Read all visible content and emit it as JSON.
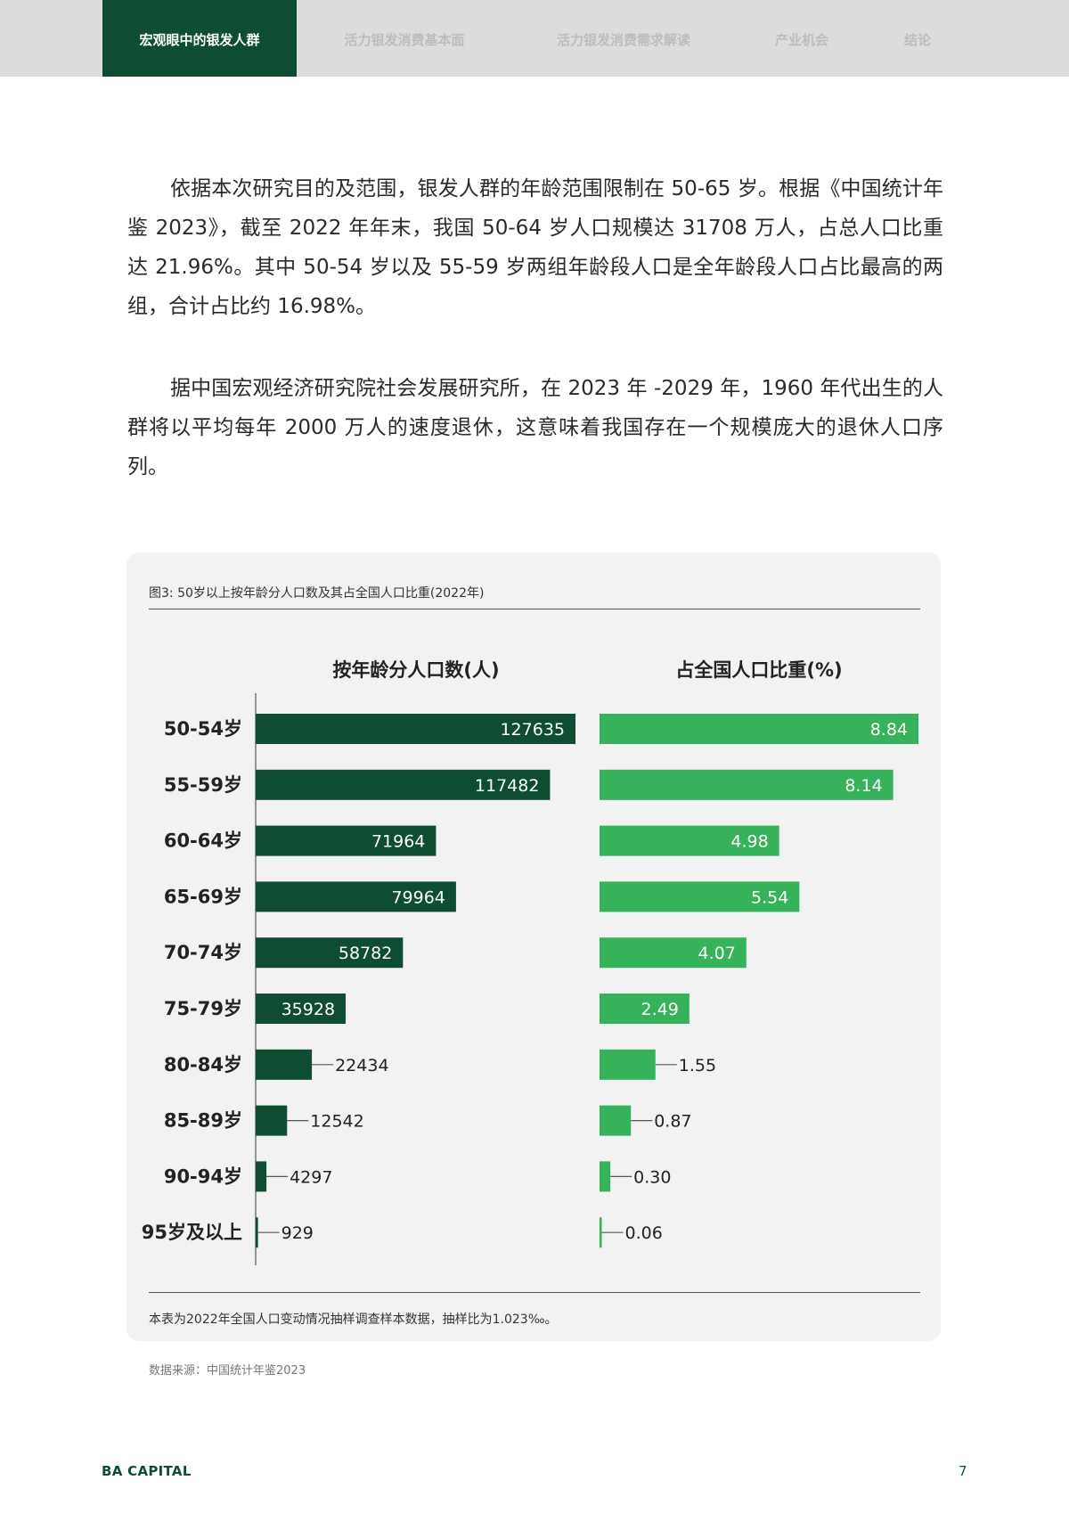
{
  "nav": {
    "tabs": [
      {
        "label": "宏观眼中的银发人群",
        "active": true
      },
      {
        "label": "活力银发消费基本面",
        "active": false
      },
      {
        "label": "活力银发消费需求解读",
        "active": false
      },
      {
        "label": "产业机会",
        "active": false
      },
      {
        "label": "结论",
        "active": false
      }
    ]
  },
  "body": {
    "paragraph1": "依据本次研究目的及范围，银发人群的年龄范围限制在 50-65 岁。根据《中国统计年鉴 2023》，截至 2022 年年末，我国 50-64 岁人口规模达 31708 万人，占总人口比重达 21.96%。其中 50-54 岁以及 55-59 岁两组年龄段人口是全年龄段人口占比最高的两组，合计占比约 16.98%。",
    "paragraph2": "据中国宏观经济研究院社会发展研究所，在 2023 年 -2029 年，1960 年代出生的人群将以平均每年 2000 万人的速度退休，这意味着我国存在一个规模庞大的退休人口序列。"
  },
  "figure": {
    "title": "图3: 50岁以上按年龄分人口数及其占全国人口比重(2022年)",
    "note": "本表为2022年全国人口变动情况抽样调查样本数据，抽样比为1.023‰。",
    "source": "数据来源：中国统计年鉴2023"
  },
  "chart_data": {
    "type": "bar",
    "orientation": "horizontal",
    "categories": [
      "50-54岁",
      "55-59岁",
      "60-64岁",
      "65-69岁",
      "70-74岁",
      "75-79岁",
      "80-84岁",
      "85-89岁",
      "90-94岁",
      "95岁及以上"
    ],
    "series": [
      {
        "name": "按年龄分人口数(人)",
        "values": [
          127635,
          117482,
          71964,
          79964,
          58782,
          35928,
          22434,
          12542,
          4297,
          929
        ],
        "labels": [
          "127635",
          "117482",
          "71964",
          "79964",
          "58782",
          "35928",
          "22434",
          "12542",
          "4297",
          "929"
        ],
        "color": "#0e4d32",
        "xlim": [
          0,
          127635
        ]
      },
      {
        "name": "占全国人口比重(%)",
        "values": [
          8.84,
          8.14,
          4.98,
          5.54,
          4.07,
          2.49,
          1.55,
          0.87,
          0.3,
          0.06
        ],
        "labels": [
          "8.84",
          "8.14",
          "4.98",
          "5.54",
          "4.07",
          "2.49",
          "1.55",
          "0.87",
          "0.30",
          "0.06"
        ],
        "color": "#36b25a",
        "xlim": [
          0,
          8.84
        ]
      }
    ],
    "grid": false,
    "legend": "none"
  },
  "footer": {
    "brand": "BA CAPITAL",
    "page": "7"
  }
}
